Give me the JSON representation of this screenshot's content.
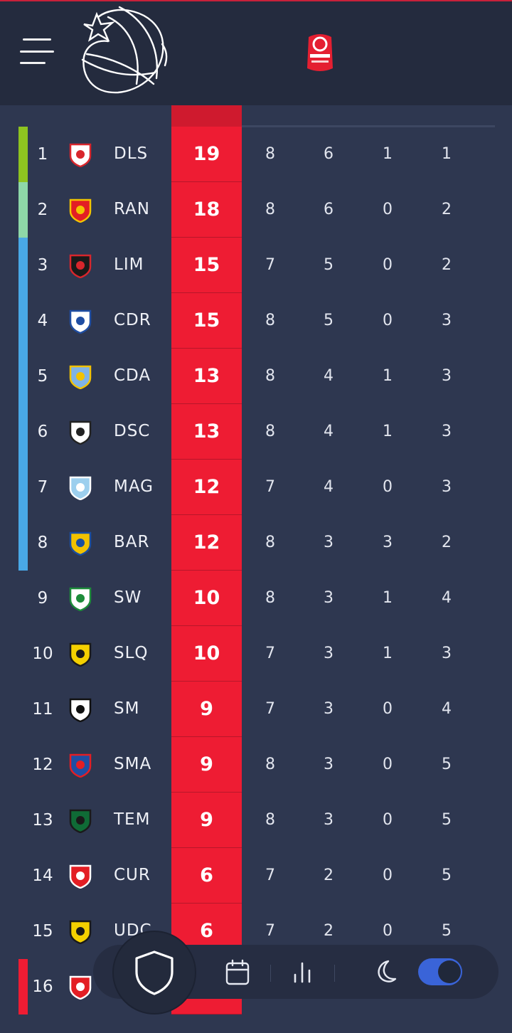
{
  "header": {
    "menu_icon": "hamburger-menu-icon",
    "brand_logo": "basketball-star-logo",
    "league_badge": "league-ascenso-badge"
  },
  "colors": {
    "points_column": "#ee1c33",
    "promotion": "#8ec320",
    "promotion_second": "#8ed8a8",
    "playoff": "#49a8e6",
    "relegation": "#ee1c33",
    "toggle_on": "#3a64d8"
  },
  "standings": [
    {
      "pos": "1",
      "abbr": "DLS",
      "pts": "19",
      "pj": "8",
      "pg": "6",
      "pe": "1",
      "pp": "1",
      "zone": "promotion"
    },
    {
      "pos": "2",
      "abbr": "RAN",
      "pts": "18",
      "pj": "8",
      "pg": "6",
      "pe": "0",
      "pp": "2",
      "zone": "promotion_second"
    },
    {
      "pos": "3",
      "abbr": "LIM",
      "pts": "15",
      "pj": "7",
      "pg": "5",
      "pe": "0",
      "pp": "2",
      "zone": "playoff"
    },
    {
      "pos": "4",
      "abbr": "CDR",
      "pts": "15",
      "pj": "8",
      "pg": "5",
      "pe": "0",
      "pp": "3",
      "zone": "playoff"
    },
    {
      "pos": "5",
      "abbr": "CDA",
      "pts": "13",
      "pj": "8",
      "pg": "4",
      "pe": "1",
      "pp": "3",
      "zone": "playoff"
    },
    {
      "pos": "6",
      "abbr": "DSC",
      "pts": "13",
      "pj": "8",
      "pg": "4",
      "pe": "1",
      "pp": "3",
      "zone": "playoff"
    },
    {
      "pos": "7",
      "abbr": "MAG",
      "pts": "12",
      "pj": "7",
      "pg": "4",
      "pe": "0",
      "pp": "3",
      "zone": "playoff"
    },
    {
      "pos": "8",
      "abbr": "BAR",
      "pts": "12",
      "pj": "8",
      "pg": "3",
      "pe": "3",
      "pp": "2",
      "zone": "playoff"
    },
    {
      "pos": "9",
      "abbr": "SW",
      "pts": "10",
      "pj": "8",
      "pg": "3",
      "pe": "1",
      "pp": "4",
      "zone": ""
    },
    {
      "pos": "10",
      "abbr": "SLQ",
      "pts": "10",
      "pj": "7",
      "pg": "3",
      "pe": "1",
      "pp": "3",
      "zone": ""
    },
    {
      "pos": "11",
      "abbr": "SM",
      "pts": "9",
      "pj": "7",
      "pg": "3",
      "pe": "0",
      "pp": "4",
      "zone": ""
    },
    {
      "pos": "12",
      "abbr": "SMA",
      "pts": "9",
      "pj": "8",
      "pg": "3",
      "pe": "0",
      "pp": "5",
      "zone": ""
    },
    {
      "pos": "13",
      "abbr": "TEM",
      "pts": "9",
      "pj": "8",
      "pg": "3",
      "pe": "0",
      "pp": "5",
      "zone": ""
    },
    {
      "pos": "14",
      "abbr": "CUR",
      "pts": "6",
      "pj": "7",
      "pg": "2",
      "pe": "0",
      "pp": "5",
      "zone": ""
    },
    {
      "pos": "15",
      "abbr": "UDC",
      "pts": "6",
      "pj": "7",
      "pg": "2",
      "pe": "0",
      "pp": "5",
      "zone": ""
    },
    {
      "pos": "16",
      "abbr": "",
      "pts": "",
      "pj": "",
      "pg": "",
      "pe": "",
      "pp": "",
      "zone": "relegation"
    }
  ],
  "bottom_nav": {
    "items": [
      {
        "name": "standings-shield-icon",
        "active": true
      },
      {
        "name": "calendar-icon",
        "active": false
      },
      {
        "name": "bar-chart-icon",
        "active": false
      },
      {
        "name": "moon-icon",
        "active": false
      }
    ],
    "dark_mode_toggle": true
  }
}
